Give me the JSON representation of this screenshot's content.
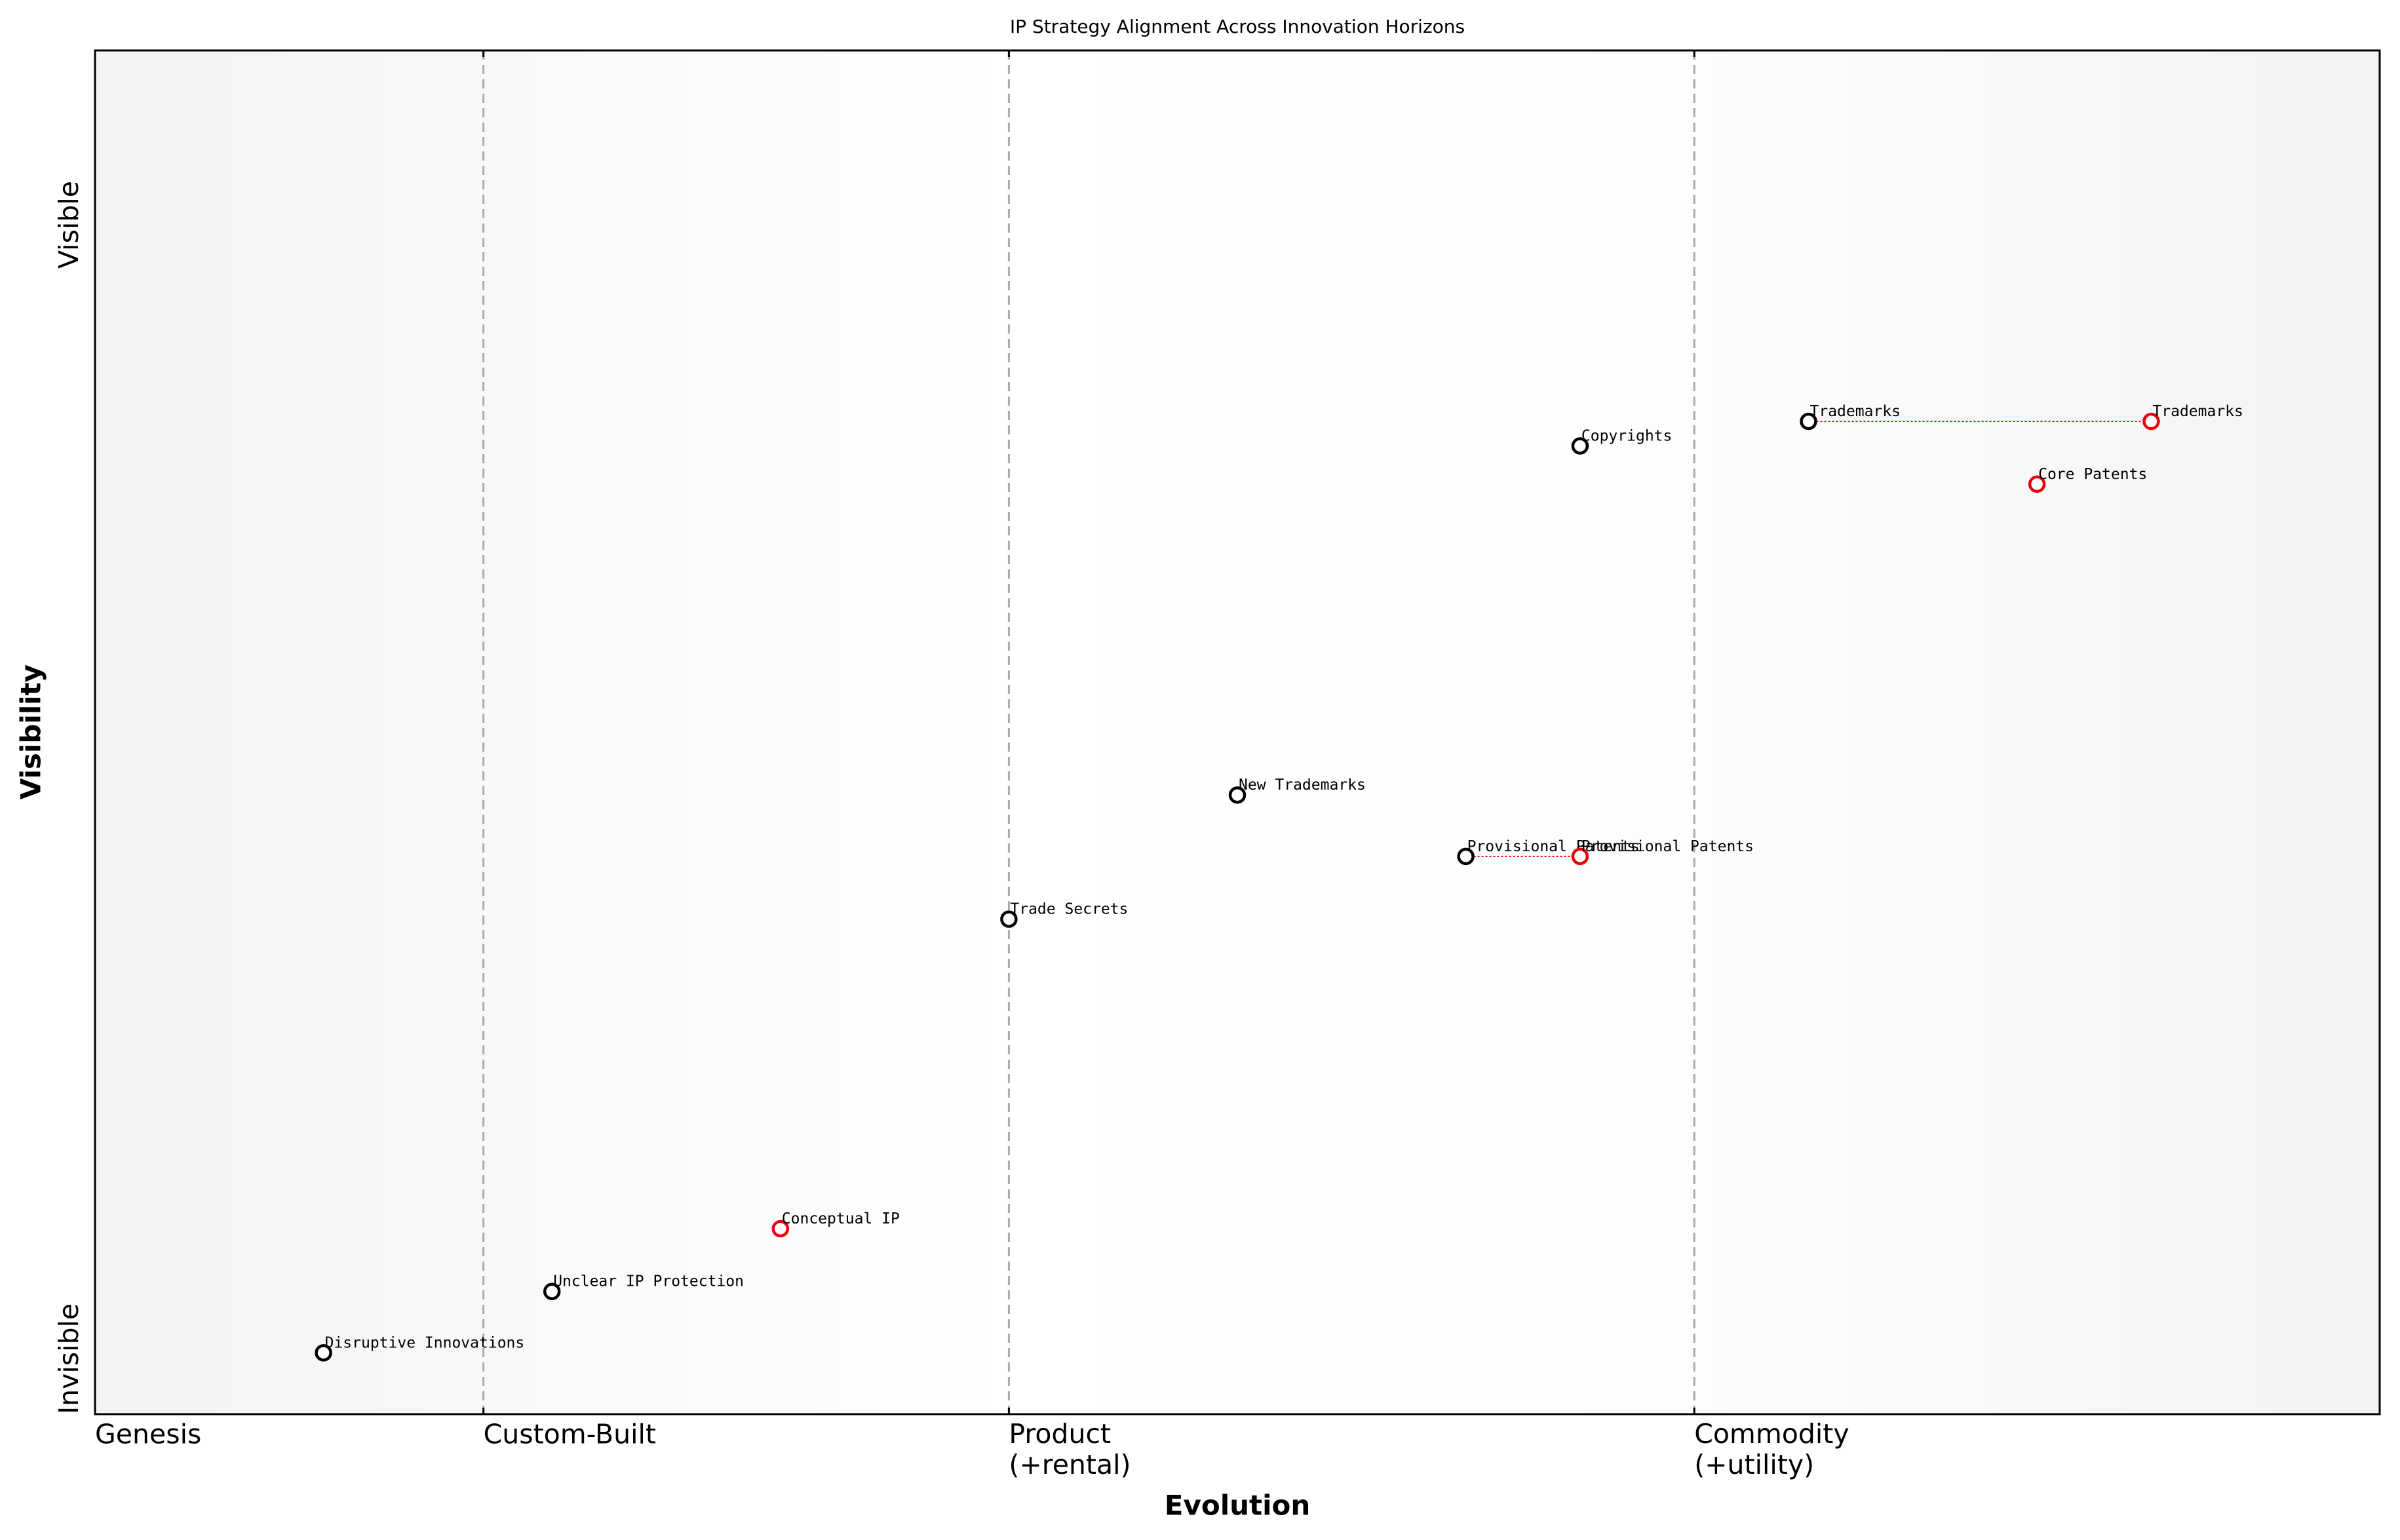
{
  "chart_data": {
    "type": "wardley",
    "title": "IP Strategy Alignment Across Innovation Horizons",
    "x_label": "Evolution",
    "y_label": "Visibility",
    "xlim": [
      0,
      1
    ],
    "ylim": [
      0,
      1
    ],
    "xticks": [
      {
        "value": 0,
        "label": "Genesis"
      },
      {
        "value": 0.17,
        "label": "Custom-Built"
      },
      {
        "value": 0.4,
        "label": "Product\n(+rental)"
      },
      {
        "value": 0.7,
        "label": "Commodity\n(+utility)"
      }
    ],
    "yticks": [
      {
        "value": 0,
        "label": "Invisible"
      },
      {
        "value": 0.84,
        "label": "Visible"
      }
    ],
    "color": "#000000",
    "evolve_color": "#e8000b",
    "components": [
      {
        "label": "Disruptive Innovations",
        "x": 0.1,
        "y": 0.045
      },
      {
        "label": "Unclear IP Protection",
        "x": 0.2,
        "y": 0.09
      },
      {
        "label": "Trade Secrets",
        "x": 0.4,
        "y": 0.363
      },
      {
        "label": "New Trademarks",
        "x": 0.5,
        "y": 0.454
      },
      {
        "label": "Provisional Patents",
        "x": 0.6,
        "y": 0.409
      },
      {
        "label": "Copyrights",
        "x": 0.65,
        "y": 0.71
      },
      {
        "label": "Trademarks",
        "x": 0.75,
        "y": 0.728
      }
    ],
    "evolved": [
      {
        "label": "Conceptual IP",
        "x": 0.3,
        "y": 0.136
      },
      {
        "label": "Provisional Patents",
        "x": 0.65,
        "y": 0.409
      },
      {
        "label": "Core Patents",
        "x": 0.85,
        "y": 0.682
      },
      {
        "label": "Trademarks",
        "x": 0.9,
        "y": 0.728
      }
    ]
  }
}
